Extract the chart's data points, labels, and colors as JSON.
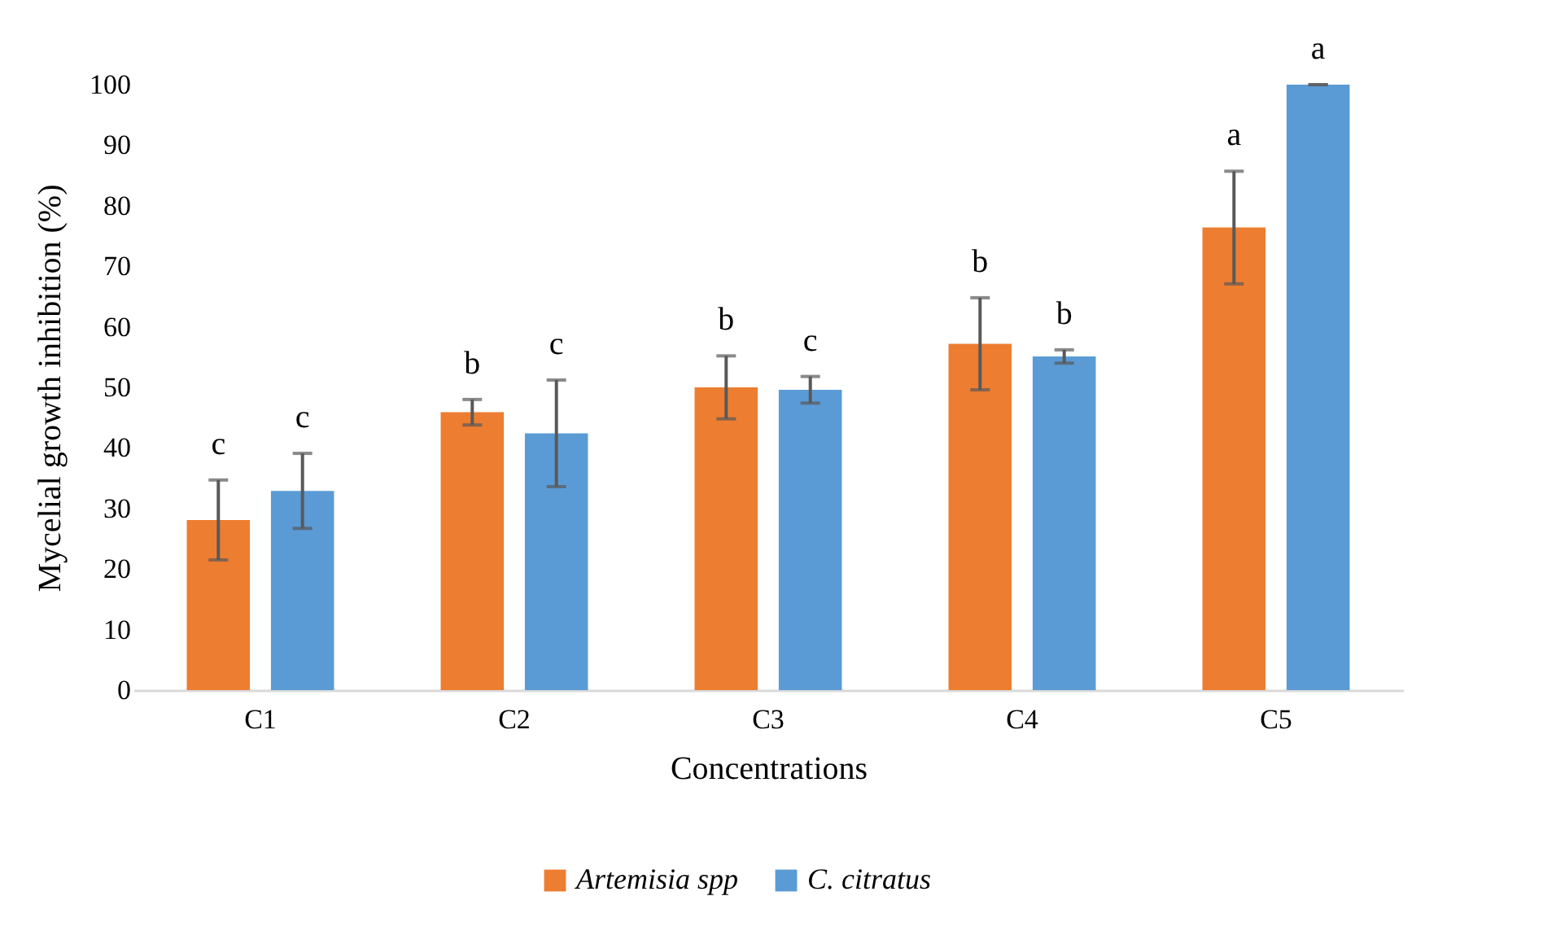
{
  "chart_data": {
    "type": "bar",
    "xlabel": "Concentrations",
    "ylabel": "Mycelial growth inhibition (%)",
    "categories": [
      "C1",
      "C2",
      "C3",
      "C4",
      "C5"
    ],
    "series": [
      {
        "name": "Artemisia spp",
        "color": "#ed7d31",
        "values": [
          28.1,
          45.9,
          50.0,
          57.2,
          76.4
        ],
        "errors": [
          6.6,
          2.1,
          5.2,
          7.6,
          9.3
        ],
        "value_labels": [
          "c",
          "b",
          "b",
          "b",
          "a"
        ]
      },
      {
        "name": "C. citratus",
        "color": "#5b9bd5",
        "values": [
          32.9,
          42.4,
          49.6,
          55.1,
          100
        ],
        "errors": [
          6.2,
          8.8,
          2.2,
          1.1,
          0
        ],
        "value_labels": [
          "c",
          "c",
          "c",
          "b",
          "a"
        ]
      }
    ],
    "ylim": [
      0,
      100
    ],
    "yticks": [
      0,
      10,
      20,
      30,
      40,
      50,
      60,
      70,
      80,
      90,
      100
    ],
    "grid": false,
    "legend": "bottom"
  }
}
